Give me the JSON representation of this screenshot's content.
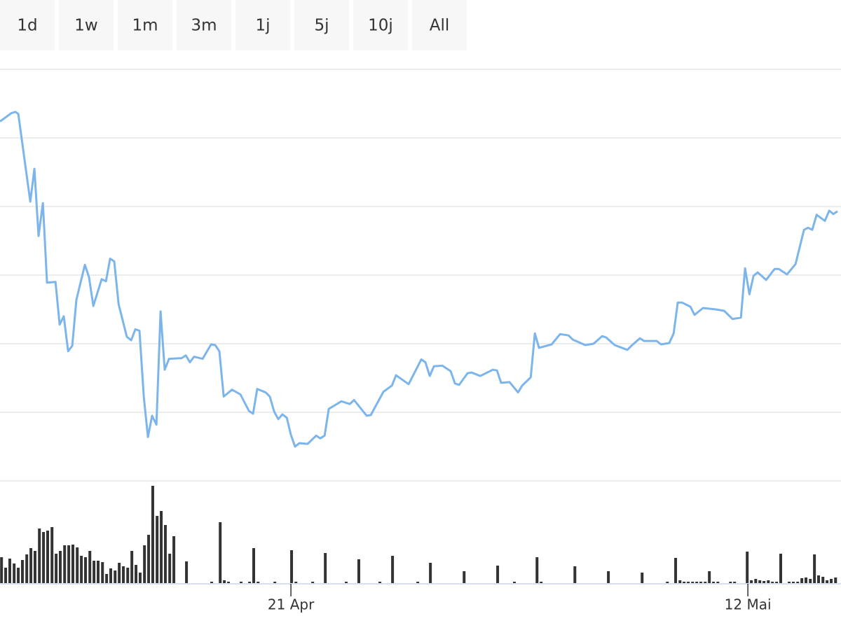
{
  "range_selector": {
    "buttons": [
      "1d",
      "1w",
      "1m",
      "3m",
      "1j",
      "5j",
      "10j",
      "All"
    ]
  },
  "chart_data": [
    {
      "type": "line",
      "x": [
        -13.37,
        -12.85,
        -12.66,
        -12.53,
        -11.98,
        -11.79,
        -11.6,
        -11.4,
        -11.21,
        -10.82,
        -10.63,
        -10.44,
        -10.24,
        -10.05,
        -9.86,
        -9.47,
        -9.28,
        -9.08,
        -8.7,
        -8.5,
        -8.31,
        -8.12,
        -7.92,
        -7.54,
        -7.34,
        -7.15,
        -6.96,
        -6.76,
        -6.57,
        -6.38,
        -6.18,
        -5.99,
        -5.8,
        -5.6,
        -5.02,
        -4.83,
        -4.64,
        -4.45,
        -4.06,
        -3.67,
        -3.48,
        -3.29,
        -3.09,
        -2.71,
        -2.32,
        -1.93,
        -1.74,
        -1.55,
        -1.16,
        -0.97,
        -0.77,
        -0.58,
        -0.39,
        -0.19,
        0,
        0.19,
        0.39,
        0.77,
        1.16,
        1.35,
        1.55,
        1.74,
        2.32,
        2.71,
        2.9,
        3.48,
        3.67,
        4.25,
        4.64,
        4.83,
        5.41,
        5.99,
        6.18,
        6.38,
        6.57,
        6.96,
        7.34,
        7.54,
        7.73,
        8.12,
        8.31,
        8.7,
        9.28,
        9.47,
        9.66,
        10.05,
        10.44,
        10.63,
        11.02,
        11.21,
        11.4,
        11.98,
        12.37,
        12.76,
        12.95,
        13.53,
        13.91,
        14.3,
        14.49,
        14.88,
        15.46,
        15.65,
        16.04,
        16.23,
        16.81,
        17.01,
        17.39,
        17.59,
        17.78,
        17.97,
        18.36,
        18.55,
        18.94,
        19.52,
        19.91,
        20.29,
        20.68,
        20.87,
        21.07,
        21.26,
        21.45,
        21.84,
        22.23,
        22.42,
        22.8,
        23.19,
        23.58,
        23.77,
        23.96,
        24.16,
        24.54,
        24.74,
        24.93,
        25.12
      ],
      "series": [
        {
          "color": "#7cb5ec",
          "values": [
            5.24,
            5.36,
            5.38,
            5.35,
            4.07,
            4.55,
            3.57,
            4.05,
            2.89,
            2.9,
            2.28,
            2.4,
            1.89,
            1.97,
            2.64,
            3.15,
            2.97,
            2.55,
            2.94,
            2.91,
            3.24,
            3.2,
            2.58,
            2.1,
            2.05,
            2.21,
            2.19,
            1.22,
            0.64,
            0.95,
            0.82,
            2.47,
            1.62,
            1.78,
            1.79,
            1.83,
            1.73,
            1.81,
            1.78,
            1.99,
            1.98,
            1.89,
            1.23,
            1.33,
            1.26,
            1.02,
            0.98,
            1.34,
            1.29,
            1.23,
            1.01,
            0.9,
            0.97,
            0.92,
            0.67,
            0.5,
            0.55,
            0.54,
            0.66,
            0.62,
            0.66,
            1.05,
            1.16,
            1.12,
            1.18,
            0.95,
            0.96,
            1.3,
            1.39,
            1.54,
            1.41,
            1.77,
            1.73,
            1.53,
            1.67,
            1.68,
            1.6,
            1.42,
            1.4,
            1.57,
            1.58,
            1.53,
            1.62,
            1.61,
            1.43,
            1.44,
            1.29,
            1.39,
            1.51,
            2.15,
            1.94,
            1.99,
            2.14,
            2.12,
            2.06,
            1.98,
            2.0,
            2.11,
            2.09,
            1.98,
            1.91,
            1.97,
            2.08,
            2.04,
            2.04,
            1.99,
            2.01,
            2.15,
            2.6,
            2.6,
            2.54,
            2.42,
            2.52,
            2.5,
            2.48,
            2.36,
            2.38,
            3.1,
            2.72,
            2.99,
            3.04,
            2.93,
            3.09,
            3.09,
            3.01,
            3.16,
            3.66,
            3.69,
            3.66,
            3.88,
            3.79,
            3.94,
            3.89,
            3.93
          ]
        }
      ],
      "xlim": [
        -13.37,
        25.28
      ],
      "xticks": [
        {
          "value": 0,
          "label": "21 Apr"
        },
        {
          "value": 21,
          "label": "12 Mai"
        }
      ],
      "ylim": [
        0,
        6
      ],
      "yticks": [
        0,
        1,
        2,
        3,
        4,
        5,
        6
      ],
      "grid": true
    },
    {
      "type": "bar",
      "color": "#333333",
      "x": [
        -13.3,
        -13.11,
        -12.92,
        -12.72,
        -12.53,
        -12.34,
        -12.14,
        -11.95,
        -11.76,
        -11.56,
        -11.37,
        -11.18,
        -10.98,
        -10.79,
        -10.6,
        -10.4,
        -10.21,
        -10.02,
        -9.82,
        -9.63,
        -9.44,
        -9.24,
        -9.05,
        -8.86,
        -8.66,
        -8.47,
        -8.28,
        -8.08,
        -7.89,
        -7.7,
        -7.5,
        -7.31,
        -7.12,
        -6.93,
        -6.73,
        -6.54,
        -6.35,
        -6.15,
        -5.96,
        -5.77,
        -5.57,
        -5.38,
        -4.8,
        -3.64,
        -3.25,
        -3.06,
        -2.87,
        -2.29,
        -1.9,
        -1.71,
        -1.51,
        -0.74,
        0.03,
        0.23,
        1.0,
        1.58,
        2.54,
        3.12,
        4.09,
        4.67,
        5.83,
        6.41,
        7.96,
        9.5,
        10.27,
        11.31,
        11.5,
        13.05,
        14.59,
        16.14,
        17.3,
        17.68,
        17.88,
        18.07,
        18.26,
        18.46,
        18.65,
        18.84,
        19.04,
        19.23,
        19.42,
        19.62,
        20.2,
        20.39,
        20.97,
        21.16,
        21.36,
        21.55,
        21.74,
        21.94,
        22.13,
        22.32,
        22.51,
        22.9,
        23.09,
        23.29,
        23.48,
        23.67,
        23.87,
        24.06,
        24.25,
        24.45,
        24.64,
        24.83,
        25.03
      ],
      "values": [
        37,
        22,
        35,
        28,
        22,
        33,
        41,
        50,
        46,
        78,
        73,
        75,
        80,
        42,
        46,
        54,
        54,
        55,
        51,
        39,
        37,
        46,
        32,
        32,
        30,
        13,
        21,
        18,
        29,
        24,
        22,
        46,
        26,
        15,
        54,
        69,
        139,
        96,
        103,
        83,
        42,
        67,
        31,
        2,
        87,
        4,
        2,
        2,
        2,
        50,
        2,
        2,
        47,
        2,
        2,
        43,
        2,
        34,
        2,
        39,
        2,
        29,
        17,
        25,
        2,
        37,
        2,
        24,
        17,
        15,
        2,
        36,
        4,
        2,
        2,
        2,
        2,
        2,
        2,
        17,
        2,
        2,
        2,
        2,
        45,
        4,
        6,
        4,
        3,
        4,
        2,
        2,
        42,
        2,
        2,
        2,
        7,
        8,
        6,
        41,
        11,
        9,
        4,
        6,
        8
      ],
      "xlim": [
        -13.37,
        25.28
      ],
      "ylim": [
        0,
        146
      ]
    }
  ]
}
